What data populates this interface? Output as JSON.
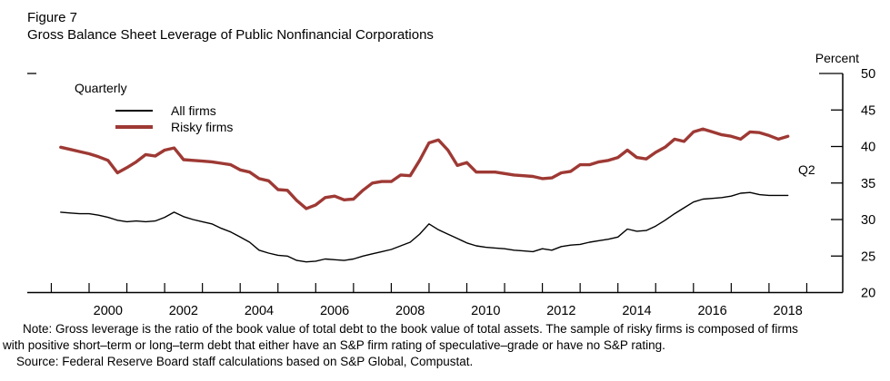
{
  "header": {
    "figure_label": "Figure 7",
    "title": "Gross Balance Sheet Leverage of Public Nonfinancial Corporations"
  },
  "labels": {
    "frequency": "Quarterly",
    "unit": "Percent",
    "last_observation": "Q2"
  },
  "notes": {
    "line1": "Note: Gross leverage is the ratio of the book value of total debt to the book value of total assets. The sample of risky firms is composed of firms",
    "line2": "with positive short–term or long–term debt that either have an S&P firm rating of speculative–grade or have no S&P rating.",
    "line3": "Source: Federal Reserve Board staff calculations based on S&P Global, Compustat."
  },
  "chart_data": {
    "type": "line",
    "title": "Gross Balance Sheet Leverage of Public Nonfinancial Corporations",
    "frequency": "Quarterly",
    "ylabel": "Percent",
    "ylim": [
      20,
      50
    ],
    "yticks": [
      20,
      25,
      30,
      35,
      40,
      45,
      50
    ],
    "x_start": 1999.25,
    "x_step": 0.25,
    "year_ticks_start": 1999,
    "year_ticks_end": 2019,
    "x_tick_labels": [
      "2000",
      "2002",
      "2004",
      "2006",
      "2008",
      "2010",
      "2012",
      "2014",
      "2016",
      "2018"
    ],
    "legend_position": "top-left",
    "grid": false,
    "series": [
      {
        "name": "All firms",
        "color": "#000000",
        "stroke_width": 1.4,
        "values": [
          31.0,
          30.9,
          30.8,
          30.8,
          30.6,
          30.3,
          29.9,
          29.7,
          29.8,
          29.7,
          29.8,
          30.3,
          31.0,
          30.4,
          30.0,
          29.7,
          29.4,
          28.8,
          28.3,
          27.6,
          26.9,
          25.8,
          25.4,
          25.1,
          25.0,
          24.4,
          24.2,
          24.3,
          24.6,
          24.5,
          24.4,
          24.6,
          25.0,
          25.3,
          25.6,
          25.9,
          26.4,
          26.9,
          28.0,
          29.4,
          28.6,
          28.0,
          27.4,
          26.8,
          26.4,
          26.2,
          26.1,
          26.0,
          25.8,
          25.7,
          25.6,
          26.0,
          25.8,
          26.3,
          26.5,
          26.6,
          26.9,
          27.1,
          27.3,
          27.6,
          28.7,
          28.4,
          28.5,
          29.1,
          29.9,
          30.8,
          31.6,
          32.4,
          32.8,
          32.9,
          33.0,
          33.2,
          33.6,
          33.7,
          33.4,
          33.3,
          33.3,
          33.3
        ]
      },
      {
        "name": "Risky firms",
        "color": "#9e3934",
        "stroke_width": 3.4,
        "values": [
          39.9,
          39.6,
          39.3,
          39.0,
          38.6,
          38.1,
          36.4,
          37.1,
          37.9,
          38.9,
          38.7,
          39.5,
          39.8,
          38.2,
          38.1,
          38.0,
          37.9,
          37.7,
          37.5,
          36.8,
          36.5,
          35.6,
          35.3,
          34.1,
          34.0,
          32.6,
          31.5,
          32.0,
          33.0,
          33.2,
          32.7,
          32.8,
          34.0,
          35.0,
          35.2,
          35.2,
          36.1,
          36.0,
          38.1,
          40.5,
          40.9,
          39.5,
          37.4,
          37.8,
          36.5,
          36.5,
          36.5,
          36.3,
          36.1,
          36.0,
          35.9,
          35.6,
          35.7,
          36.4,
          36.6,
          37.5,
          37.5,
          37.9,
          38.1,
          38.5,
          39.5,
          38.5,
          38.3,
          39.2,
          39.9,
          41.0,
          40.7,
          42.0,
          42.4,
          42.0,
          41.6,
          41.4,
          41.0,
          42.0,
          41.9,
          41.5,
          41.0,
          41.4
        ]
      }
    ]
  }
}
